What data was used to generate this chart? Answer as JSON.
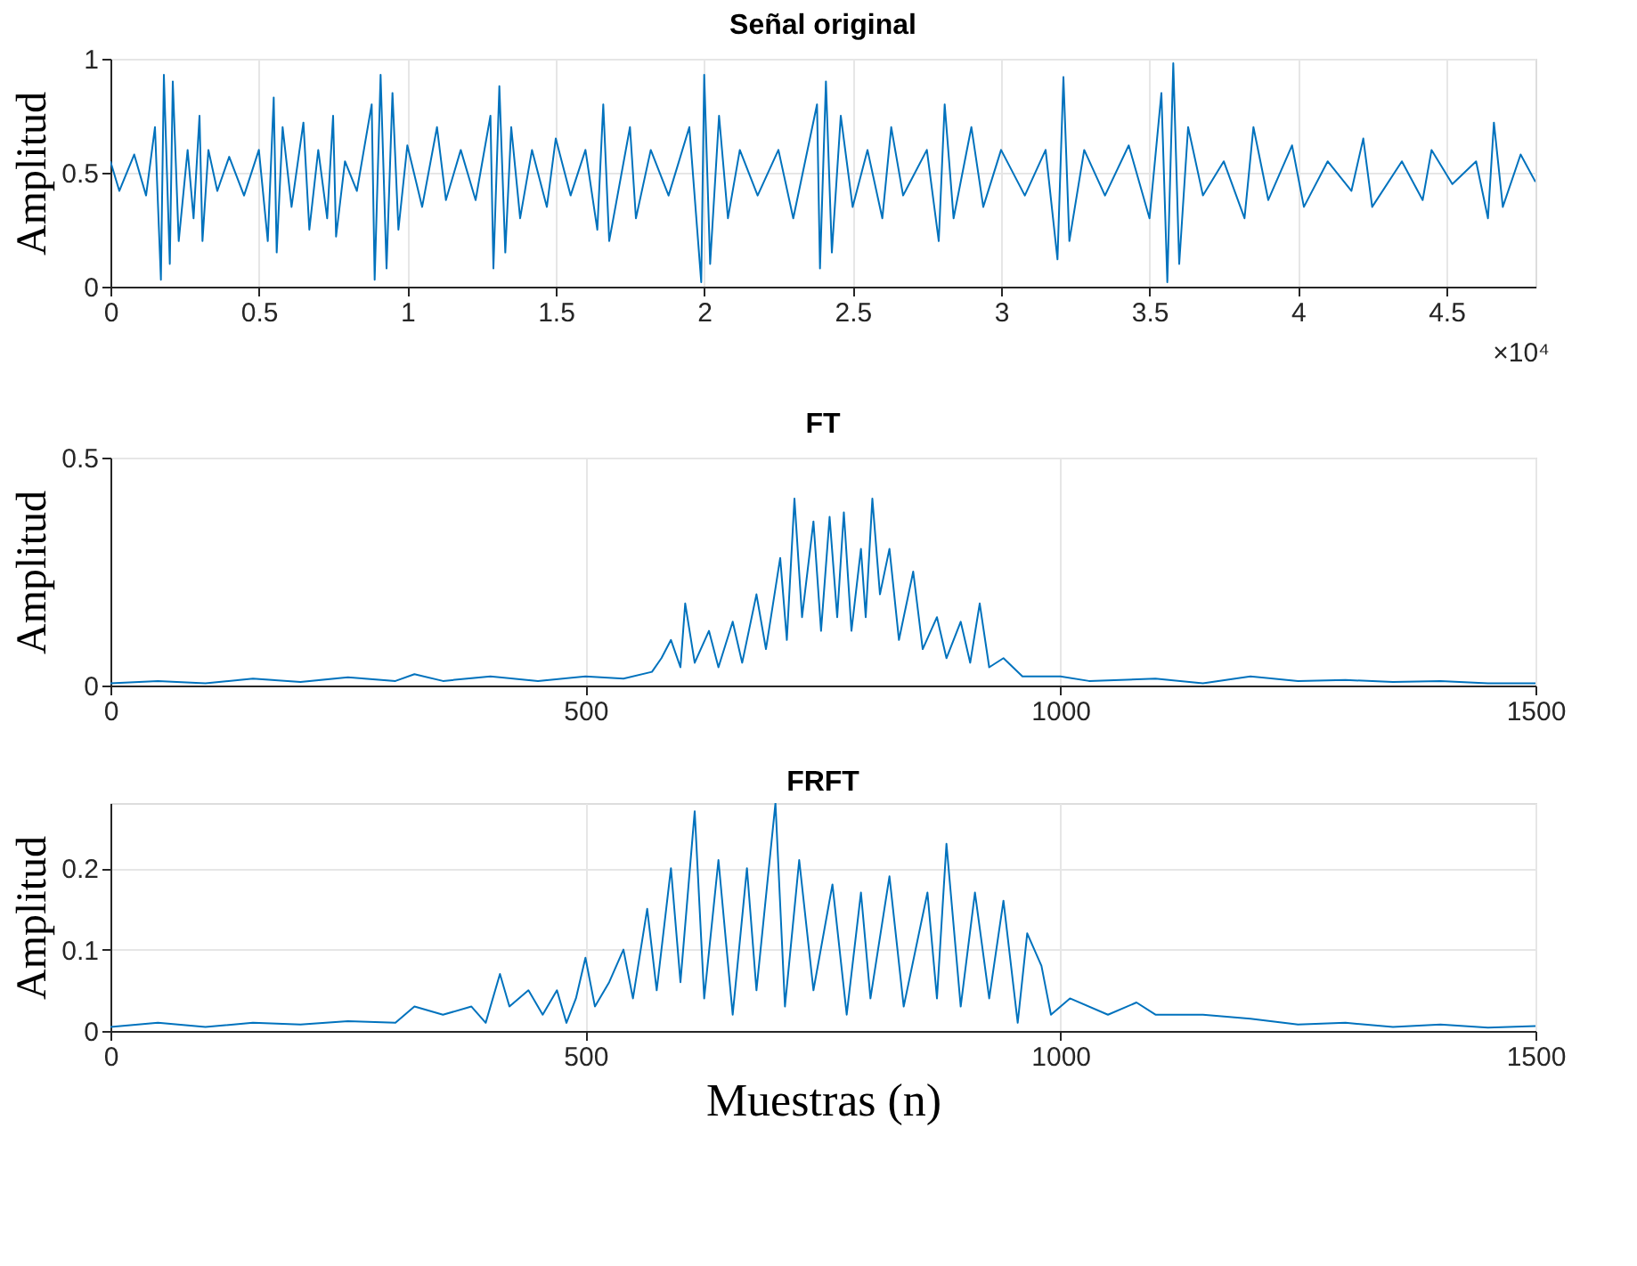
{
  "chart_data": [
    {
      "type": "line",
      "title": "Señal original",
      "ylabel": "Amplitud",
      "xlim": [
        0,
        4.8
      ],
      "ylim": [
        0,
        1
      ],
      "yticks": [
        0,
        0.5,
        1
      ],
      "grid": true,
      "annotations": [
        "×10⁴"
      ],
      "xticks": [
        0,
        0.5,
        1,
        1.5,
        2,
        2.5,
        3,
        3.5,
        4,
        4.5
      ],
      "series": [
        {
          "color": "#0072bd",
          "x": [
            0,
            0.03,
            0.08,
            0.12,
            0.15,
            0.17,
            0.18,
            0.2,
            0.21,
            0.23,
            0.26,
            0.28,
            0.3,
            0.31,
            0.33,
            0.36,
            0.4,
            0.45,
            0.5,
            0.53,
            0.55,
            0.56,
            0.58,
            0.61,
            0.65,
            0.67,
            0.7,
            0.73,
            0.75,
            0.76,
            0.79,
            0.83,
            0.88,
            0.89,
            0.91,
            0.93,
            0.95,
            0.97,
            1.0,
            1.05,
            1.1,
            1.13,
            1.18,
            1.23,
            1.28,
            1.29,
            1.31,
            1.33,
            1.35,
            1.38,
            1.42,
            1.47,
            1.5,
            1.55,
            1.6,
            1.64,
            1.66,
            1.68,
            1.75,
            1.77,
            1.82,
            1.88,
            1.95,
            1.99,
            2.0,
            2.02,
            2.05,
            2.08,
            2.12,
            2.18,
            2.25,
            2.3,
            2.38,
            2.39,
            2.41,
            2.43,
            2.46,
            2.5,
            2.55,
            2.6,
            2.63,
            2.67,
            2.75,
            2.79,
            2.81,
            2.84,
            2.9,
            2.94,
            3.0,
            3.08,
            3.15,
            3.19,
            3.21,
            3.23,
            3.28,
            3.35,
            3.43,
            3.5,
            3.54,
            3.56,
            3.58,
            3.6,
            3.63,
            3.68,
            3.75,
            3.82,
            3.85,
            3.9,
            3.98,
            4.02,
            4.1,
            4.18,
            4.22,
            4.25,
            4.35,
            4.42,
            4.45,
            4.52,
            4.6,
            4.64,
            4.66,
            4.69,
            4.75,
            4.8
          ],
          "values": [
            0.55,
            0.42,
            0.58,
            0.4,
            0.7,
            0.03,
            0.93,
            0.1,
            0.9,
            0.2,
            0.6,
            0.3,
            0.75,
            0.2,
            0.6,
            0.42,
            0.57,
            0.4,
            0.6,
            0.2,
            0.83,
            0.15,
            0.7,
            0.35,
            0.72,
            0.25,
            0.6,
            0.3,
            0.75,
            0.22,
            0.55,
            0.42,
            0.8,
            0.03,
            0.93,
            0.08,
            0.85,
            0.25,
            0.62,
            0.35,
            0.7,
            0.38,
            0.6,
            0.38,
            0.75,
            0.08,
            0.88,
            0.15,
            0.7,
            0.3,
            0.6,
            0.35,
            0.65,
            0.4,
            0.6,
            0.25,
            0.8,
            0.2,
            0.7,
            0.3,
            0.6,
            0.4,
            0.7,
            0.02,
            0.93,
            0.1,
            0.75,
            0.3,
            0.6,
            0.4,
            0.6,
            0.3,
            0.8,
            0.08,
            0.9,
            0.15,
            0.75,
            0.35,
            0.6,
            0.3,
            0.7,
            0.4,
            0.6,
            0.2,
            0.8,
            0.3,
            0.7,
            0.35,
            0.6,
            0.4,
            0.6,
            0.12,
            0.92,
            0.2,
            0.6,
            0.4,
            0.62,
            0.3,
            0.85,
            0.02,
            0.98,
            0.1,
            0.7,
            0.4,
            0.55,
            0.3,
            0.7,
            0.38,
            0.62,
            0.35,
            0.55,
            0.42,
            0.65,
            0.35,
            0.55,
            0.38,
            0.6,
            0.45,
            0.55,
            0.3,
            0.72,
            0.35,
            0.58,
            0.46
          ]
        }
      ]
    },
    {
      "type": "line",
      "title": "FT",
      "ylabel": "Amplitud",
      "xlim": [
        0,
        1500
      ],
      "xticks": [
        0,
        500,
        1000,
        1500
      ],
      "ylim": [
        0,
        0.5
      ],
      "yticks": [
        0,
        0.5
      ],
      "grid": true,
      "series": [
        {
          "color": "#0072bd",
          "x": [
            0,
            50,
            100,
            150,
            200,
            250,
            300,
            320,
            350,
            400,
            450,
            500,
            540,
            570,
            580,
            590,
            600,
            605,
            615,
            630,
            640,
            655,
            665,
            680,
            690,
            705,
            712,
            720,
            728,
            740,
            748,
            757,
            765,
            772,
            780,
            790,
            795,
            802,
            810,
            820,
            830,
            845,
            855,
            870,
            880,
            895,
            905,
            915,
            925,
            940,
            960,
            1000,
            1030,
            1100,
            1150,
            1200,
            1250,
            1300,
            1350,
            1400,
            1450,
            1500
          ],
          "values": [
            0.005,
            0.01,
            0.005,
            0.015,
            0.008,
            0.018,
            0.01,
            0.025,
            0.01,
            0.02,
            0.01,
            0.02,
            0.015,
            0.03,
            0.06,
            0.1,
            0.04,
            0.18,
            0.05,
            0.12,
            0.04,
            0.14,
            0.05,
            0.2,
            0.08,
            0.28,
            0.1,
            0.41,
            0.15,
            0.36,
            0.12,
            0.37,
            0.15,
            0.38,
            0.12,
            0.3,
            0.15,
            0.41,
            0.2,
            0.3,
            0.1,
            0.25,
            0.08,
            0.15,
            0.06,
            0.14,
            0.05,
            0.18,
            0.04,
            0.06,
            0.02,
            0.02,
            0.01,
            0.015,
            0.005,
            0.02,
            0.01,
            0.012,
            0.008,
            0.01,
            0.005,
            0.005
          ]
        }
      ]
    },
    {
      "type": "line",
      "title": "FRFT",
      "xlabel": "Muestras (n)",
      "ylabel": "Amplitud",
      "xlim": [
        0,
        1500
      ],
      "xticks": [
        0,
        500,
        1000,
        1500
      ],
      "ylim": [
        0,
        0.28
      ],
      "yticks": [
        0,
        0.1,
        0.2
      ],
      "grid": true,
      "series": [
        {
          "color": "#0072bd",
          "x": [
            0,
            50,
            100,
            150,
            200,
            250,
            300,
            320,
            350,
            380,
            395,
            410,
            420,
            440,
            455,
            470,
            480,
            490,
            500,
            510,
            525,
            540,
            550,
            565,
            575,
            590,
            600,
            615,
            625,
            640,
            655,
            670,
            680,
            700,
            710,
            725,
            740,
            760,
            775,
            790,
            800,
            820,
            835,
            860,
            870,
            880,
            895,
            910,
            925,
            940,
            955,
            965,
            980,
            990,
            1010,
            1050,
            1080,
            1100,
            1150,
            1200,
            1250,
            1300,
            1350,
            1400,
            1450,
            1500
          ],
          "values": [
            0.005,
            0.01,
            0.005,
            0.01,
            0.008,
            0.012,
            0.01,
            0.03,
            0.02,
            0.03,
            0.01,
            0.07,
            0.03,
            0.05,
            0.02,
            0.05,
            0.01,
            0.04,
            0.09,
            0.03,
            0.06,
            0.1,
            0.04,
            0.15,
            0.05,
            0.2,
            0.06,
            0.27,
            0.04,
            0.21,
            0.02,
            0.2,
            0.05,
            0.28,
            0.03,
            0.21,
            0.05,
            0.18,
            0.02,
            0.17,
            0.04,
            0.19,
            0.03,
            0.17,
            0.04,
            0.23,
            0.03,
            0.17,
            0.04,
            0.16,
            0.01,
            0.12,
            0.08,
            0.02,
            0.04,
            0.02,
            0.035,
            0.02,
            0.02,
            0.015,
            0.008,
            0.01,
            0.005,
            0.008,
            0.004,
            0.006
          ]
        }
      ]
    }
  ]
}
